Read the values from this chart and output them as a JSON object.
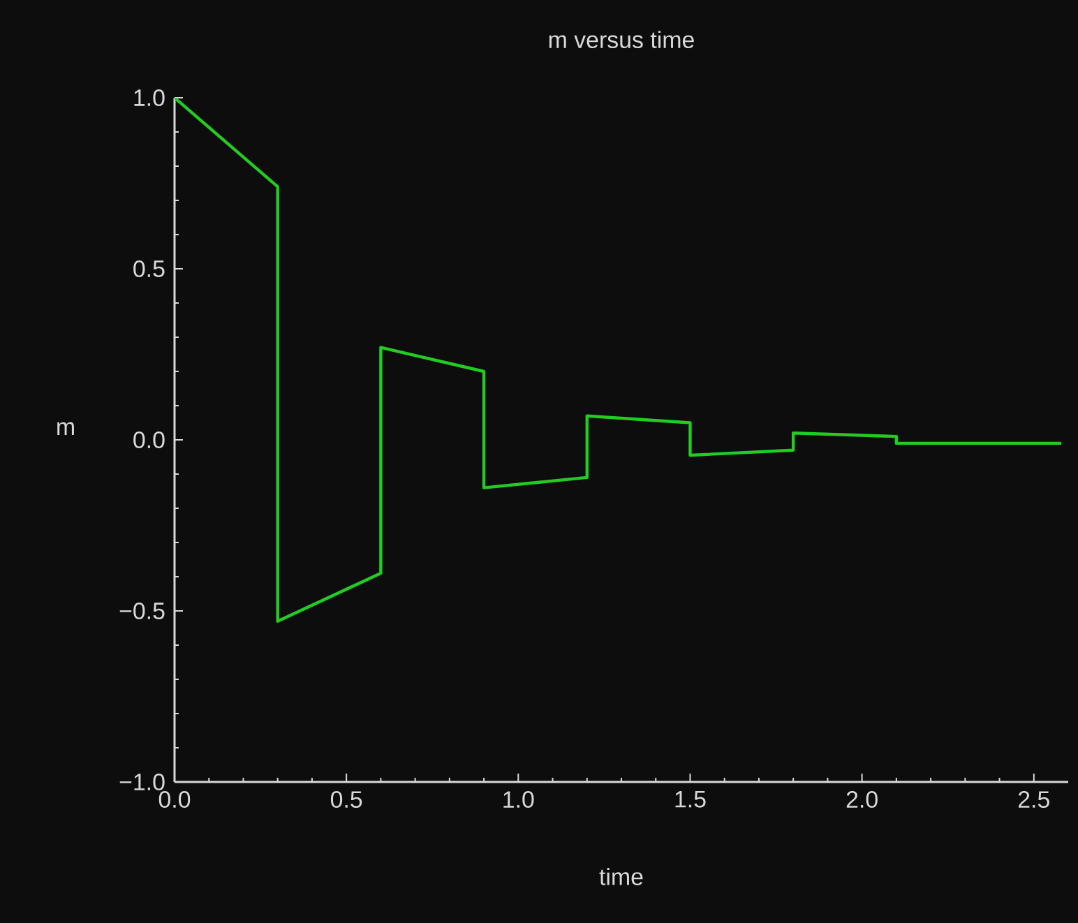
{
  "chart_data": {
    "type": "line",
    "title": "m versus time",
    "xlabel": "time",
    "ylabel": "m",
    "xlim": [
      0,
      2.6
    ],
    "ylim": [
      -1,
      1
    ],
    "xticks": [
      {
        "value": 0,
        "label": "0.0"
      },
      {
        "value": 0.5,
        "label": "0.5"
      },
      {
        "value": 1,
        "label": "1.0"
      },
      {
        "value": 1.5,
        "label": "1.5"
      },
      {
        "value": 2,
        "label": "2.0"
      },
      {
        "value": 2.5,
        "label": "2.5"
      }
    ],
    "yticks": [
      {
        "value": -1,
        "label": "−1.0"
      },
      {
        "value": -0.5,
        "label": "−0.5"
      },
      {
        "value": 0,
        "label": "0.0"
      },
      {
        "value": 0.5,
        "label": "0.5"
      },
      {
        "value": 1,
        "label": "1.0"
      }
    ],
    "marker": "none",
    "line_style": "solid",
    "x": [
      0,
      0.3,
      0.3,
      0.6,
      0.6,
      0.9,
      0.9,
      1.2,
      1.2,
      1.5,
      1.5,
      1.8,
      1.8,
      2.1,
      2.1,
      2.58
    ],
    "series": [
      {
        "color": "#22cc22",
        "values": [
          1.0,
          0.74,
          -0.53,
          -0.39,
          0.27,
          0.2,
          -0.14,
          -0.11,
          0.07,
          0.05,
          -0.045,
          -0.03,
          0.02,
          0.01,
          -0.01,
          -0.01
        ]
      }
    ]
  }
}
